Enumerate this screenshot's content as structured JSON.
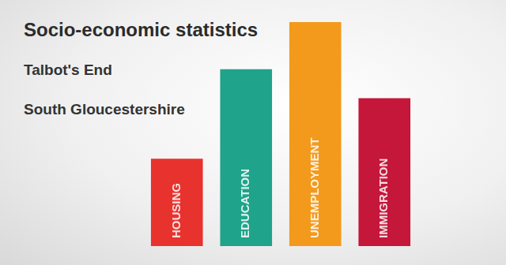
{
  "chart_data": {
    "type": "bar",
    "title": "Socio-economic statistics",
    "subtitle": [
      "Talbot's End",
      "South Gloucestershire"
    ],
    "categories": [
      "HOUSING",
      "EDUCATION",
      "UNEMPLOYMENT",
      "IMMIGRATION"
    ],
    "values": [
      39,
      79,
      100,
      66
    ],
    "colors": [
      "#e8322e",
      "#1fa38a",
      "#f39a1c",
      "#c4173a"
    ],
    "ylim": [
      0,
      100
    ],
    "grid": false,
    "tick_labels": false
  }
}
